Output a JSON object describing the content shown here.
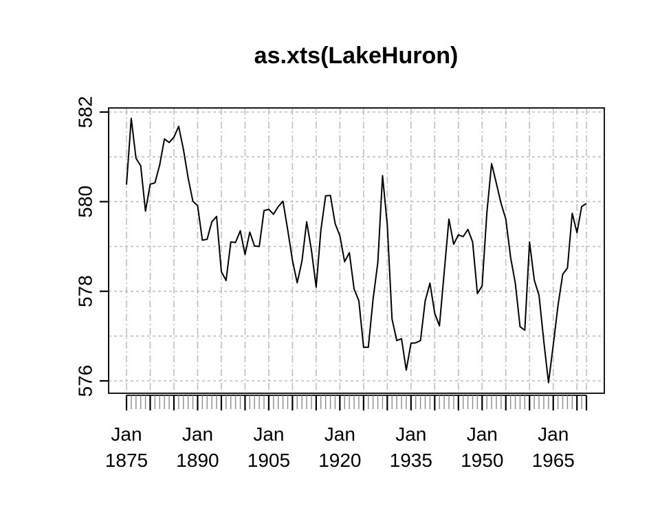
{
  "chart_data": {
    "type": "line",
    "title": "as.xts(LakeHuron)",
    "xlabel": "",
    "ylabel": "",
    "x_start_year": 1875,
    "x_end_year": 1972,
    "ylim": [
      575.96,
      581.86
    ],
    "grid": true,
    "y_ticks": [
      576,
      578,
      580,
      582
    ],
    "y_tick_labels": [
      "576",
      "578",
      "580",
      "582"
    ],
    "x_major_tick_years": [
      1875,
      1890,
      1905,
      1920,
      1935,
      1950,
      1965
    ],
    "x_tick_labels": [
      {
        "month": "Jan",
        "year": "1875"
      },
      {
        "month": "Jan",
        "year": "1890"
      },
      {
        "month": "Jan",
        "year": "1905"
      },
      {
        "month": "Jan",
        "year": "1920"
      },
      {
        "month": "Jan",
        "year": "1935"
      },
      {
        "month": "Jan",
        "year": "1950"
      },
      {
        "month": "Jan",
        "year": "1965"
      }
    ],
    "x": [
      1875,
      1876,
      1877,
      1878,
      1879,
      1880,
      1881,
      1882,
      1883,
      1884,
      1885,
      1886,
      1887,
      1888,
      1889,
      1890,
      1891,
      1892,
      1893,
      1894,
      1895,
      1896,
      1897,
      1898,
      1899,
      1900,
      1901,
      1902,
      1903,
      1904,
      1905,
      1906,
      1907,
      1908,
      1909,
      1910,
      1911,
      1912,
      1913,
      1914,
      1915,
      1916,
      1917,
      1918,
      1919,
      1920,
      1921,
      1922,
      1923,
      1924,
      1925,
      1926,
      1927,
      1928,
      1929,
      1930,
      1931,
      1932,
      1933,
      1934,
      1935,
      1936,
      1937,
      1938,
      1939,
      1940,
      1941,
      1942,
      1943,
      1944,
      1945,
      1946,
      1947,
      1948,
      1949,
      1950,
      1951,
      1952,
      1953,
      1954,
      1955,
      1956,
      1957,
      1958,
      1959,
      1960,
      1961,
      1962,
      1963,
      1964,
      1965,
      1966,
      1967,
      1968,
      1969,
      1970,
      1971,
      1972
    ],
    "series": [
      {
        "values": [
          580.38,
          581.86,
          580.97,
          580.8,
          579.79,
          580.39,
          580.42,
          580.82,
          581.4,
          581.32,
          581.44,
          581.68,
          581.17,
          580.53,
          580.01,
          579.91,
          579.14,
          579.16,
          579.55,
          579.67,
          578.44,
          578.24,
          579.1,
          579.09,
          579.35,
          578.82,
          579.32,
          579.01,
          579.0,
          579.8,
          579.83,
          579.72,
          579.89,
          580.01,
          579.37,
          578.69,
          578.19,
          578.67,
          579.55,
          578.92,
          578.09,
          579.37,
          580.13,
          580.14,
          579.51,
          579.24,
          578.66,
          578.86,
          578.05,
          577.79,
          576.75,
          576.75,
          577.82,
          578.64,
          580.58,
          579.48,
          577.38,
          576.9,
          576.94,
          576.24,
          576.84,
          576.85,
          576.9,
          577.79,
          578.18,
          577.51,
          577.23,
          578.42,
          579.61,
          579.05,
          579.26,
          579.22,
          579.38,
          579.1,
          577.95,
          578.12,
          579.75,
          580.85,
          580.41,
          579.96,
          579.61,
          578.76,
          578.18,
          577.21,
          577.13,
          579.1,
          578.25,
          577.91,
          576.89,
          575.96,
          576.8,
          577.68,
          578.38,
          578.52,
          579.74,
          579.31,
          579.89,
          579.96
        ]
      }
    ]
  }
}
